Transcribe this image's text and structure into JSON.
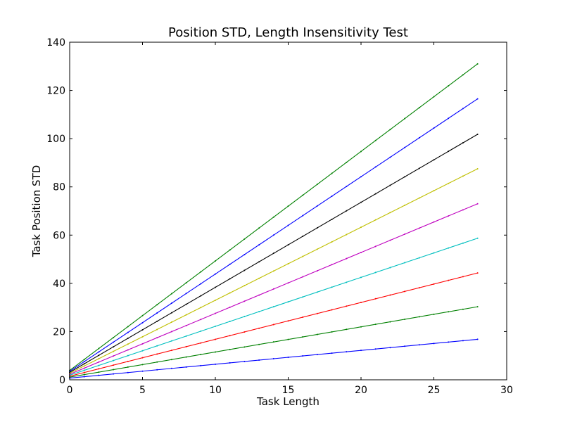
{
  "chart_data": {
    "type": "line",
    "title": "Position STD, Length Insensitivity Test",
    "xlabel": "Task Length",
    "ylabel": "Task Position STD",
    "xlim": [
      0,
      30
    ],
    "ylim": [
      0,
      140
    ],
    "xticks": [
      0,
      5,
      10,
      15,
      20,
      25,
      30
    ],
    "yticks": [
      0,
      20,
      40,
      60,
      80,
      100,
      120,
      140
    ],
    "grid": false,
    "legend": "none",
    "x": [
      0,
      28
    ],
    "series": [
      {
        "color": "#0000ff",
        "values": [
          0.7,
          16.8
        ]
      },
      {
        "color": "#008000",
        "values": [
          1.1,
          30.3
        ]
      },
      {
        "color": "#ff0000",
        "values": [
          1.5,
          44.3
        ]
      },
      {
        "color": "#00bfbf",
        "values": [
          1.9,
          58.7
        ]
      },
      {
        "color": "#bf00bf",
        "values": [
          2.3,
          73.0
        ]
      },
      {
        "color": "#bfbf00",
        "values": [
          2.7,
          87.5
        ]
      },
      {
        "color": "#000000",
        "values": [
          3.1,
          101.8
        ]
      },
      {
        "color": "#0000ff",
        "values": [
          3.5,
          116.5
        ]
      },
      {
        "color": "#008000",
        "values": [
          3.9,
          131.0
        ]
      }
    ]
  }
}
